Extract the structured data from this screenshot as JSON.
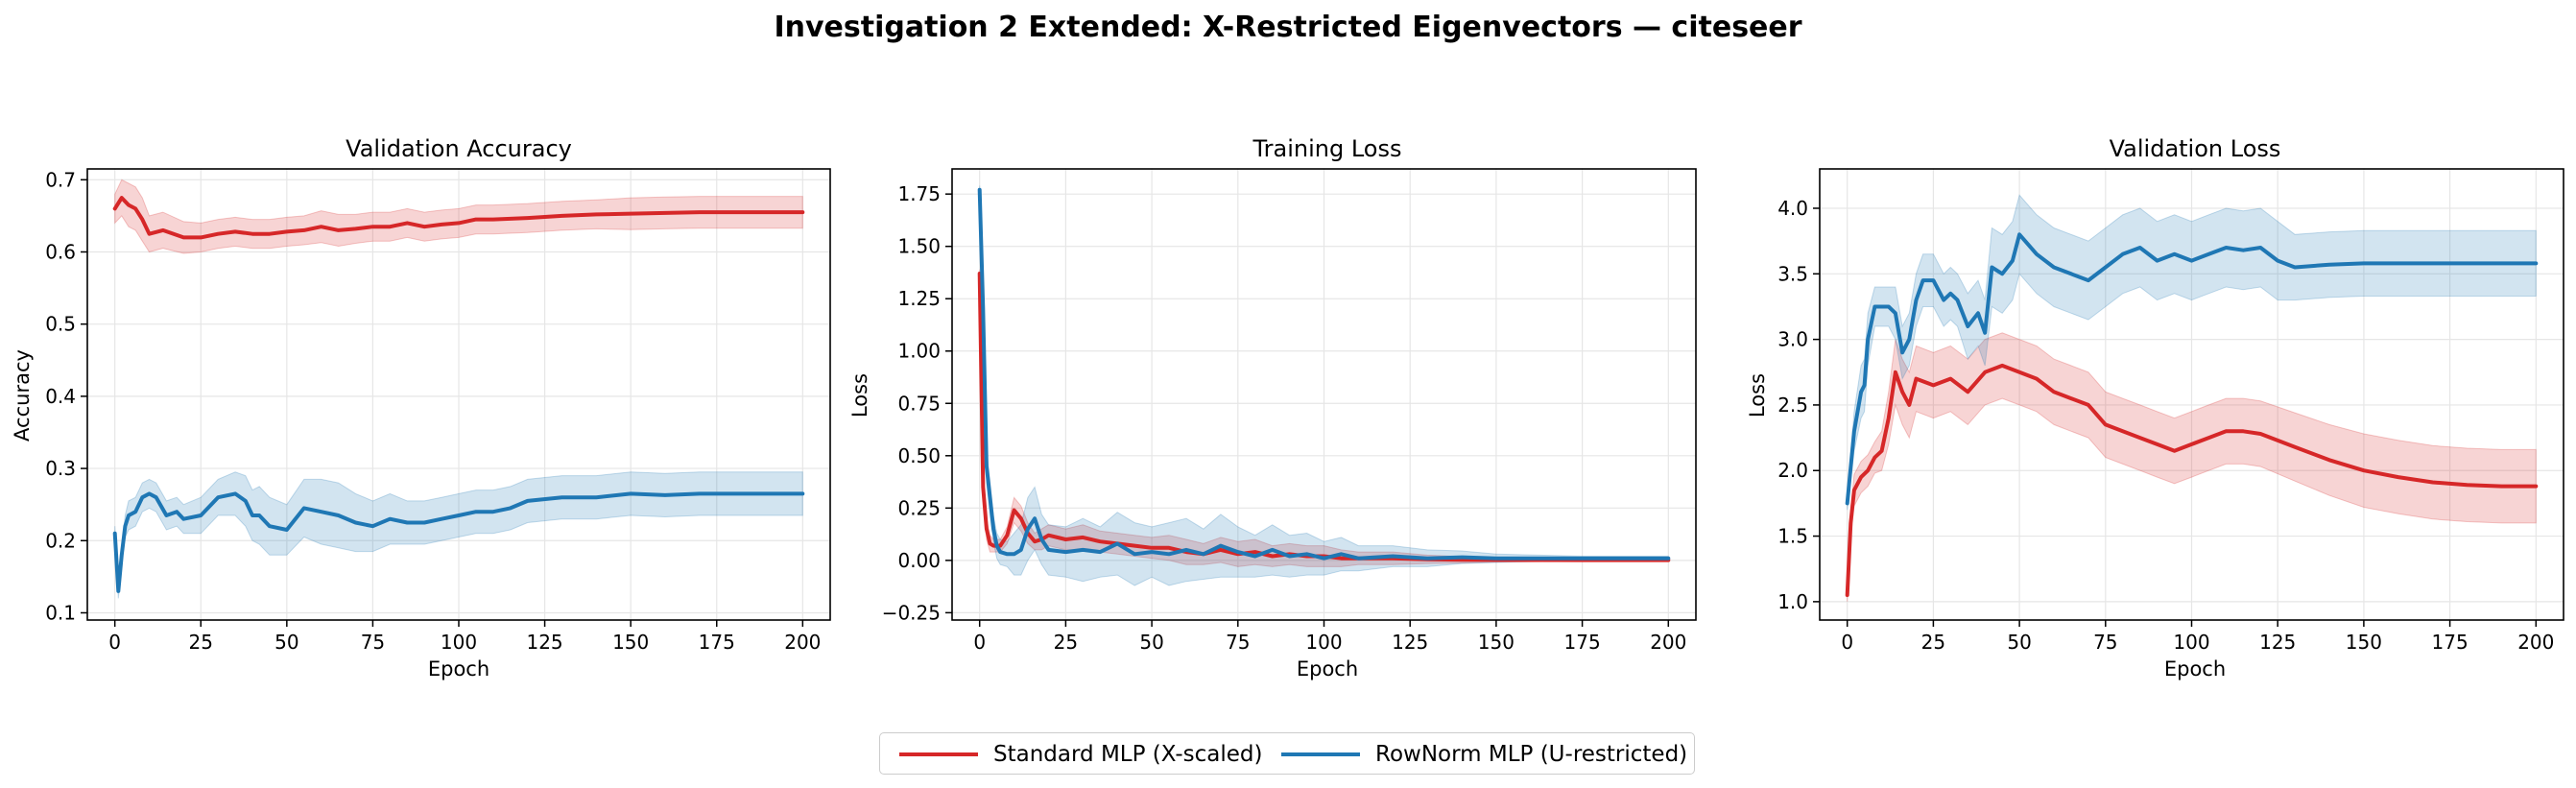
{
  "figure": {
    "title": "Investigation 2 Extended: X-Restricted Eigenvectors — citeseer",
    "colors": {
      "standard": "#d62728",
      "rownorm": "#1f77b4"
    },
    "legend": {
      "entries": [
        {
          "name": "Standard MLP (X-scaled)",
          "color": "#d62728"
        },
        {
          "name": "RowNorm MLP (U-restricted)",
          "color": "#1f77b4"
        }
      ],
      "placement": "bottom-center"
    }
  },
  "chart_data": [
    {
      "type": "line",
      "title": "Validation Accuracy",
      "xlabel": "Epoch",
      "ylabel": "Accuracy",
      "xlim": [
        -8,
        208
      ],
      "ylim": [
        0.09,
        0.715
      ],
      "xticks": [
        0,
        25,
        50,
        75,
        100,
        125,
        150,
        175,
        200
      ],
      "yticks": [
        0.1,
        0.2,
        0.3,
        0.4,
        0.5,
        0.6,
        0.7
      ],
      "ytick_labels": [
        "0.1",
        "0.2",
        "0.3",
        "0.4",
        "0.5",
        "0.6",
        "0.7"
      ],
      "grid": true,
      "series": [
        {
          "name": "Standard MLP (X-scaled)",
          "color": "#d62728",
          "x": [
            0,
            2,
            4,
            6,
            8,
            10,
            14,
            20,
            25,
            30,
            35,
            40,
            45,
            50,
            55,
            60,
            65,
            70,
            75,
            80,
            85,
            90,
            95,
            100,
            105,
            110,
            120,
            130,
            140,
            150,
            160,
            170,
            180,
            190,
            200
          ],
          "y": [
            0.66,
            0.675,
            0.665,
            0.66,
            0.645,
            0.625,
            0.63,
            0.62,
            0.62,
            0.625,
            0.628,
            0.625,
            0.625,
            0.628,
            0.63,
            0.635,
            0.63,
            0.632,
            0.635,
            0.635,
            0.64,
            0.635,
            0.638,
            0.64,
            0.645,
            0.645,
            0.647,
            0.65,
            0.652,
            0.653,
            0.654,
            0.655,
            0.655,
            0.655,
            0.655
          ],
          "band": [
            0.02,
            0.025,
            0.03,
            0.03,
            0.03,
            0.025,
            0.025,
            0.022,
            0.02,
            0.02,
            0.02,
            0.02,
            0.02,
            0.02,
            0.02,
            0.022,
            0.022,
            0.02,
            0.02,
            0.02,
            0.02,
            0.02,
            0.02,
            0.02,
            0.02,
            0.02,
            0.02,
            0.02,
            0.02,
            0.022,
            0.022,
            0.022,
            0.022,
            0.022,
            0.022
          ]
        },
        {
          "name": "RowNorm MLP (U-restricted)",
          "color": "#1f77b4",
          "x": [
            0,
            1,
            2,
            3,
            4,
            6,
            8,
            10,
            12,
            15,
            18,
            20,
            25,
            30,
            35,
            38,
            40,
            42,
            45,
            50,
            55,
            60,
            65,
            70,
            75,
            80,
            85,
            90,
            95,
            100,
            105,
            110,
            115,
            120,
            130,
            140,
            150,
            160,
            170,
            180,
            190,
            200
          ],
          "y": [
            0.21,
            0.13,
            0.18,
            0.22,
            0.235,
            0.24,
            0.26,
            0.265,
            0.26,
            0.235,
            0.24,
            0.23,
            0.235,
            0.26,
            0.265,
            0.255,
            0.235,
            0.235,
            0.22,
            0.215,
            0.245,
            0.24,
            0.235,
            0.225,
            0.22,
            0.23,
            0.225,
            0.225,
            0.23,
            0.235,
            0.24,
            0.24,
            0.245,
            0.255,
            0.26,
            0.26,
            0.265,
            0.263,
            0.265,
            0.265,
            0.265,
            0.265
          ],
          "band": [
            0.01,
            0.01,
            0.01,
            0.015,
            0.02,
            0.02,
            0.02,
            0.02,
            0.02,
            0.02,
            0.02,
            0.02,
            0.025,
            0.025,
            0.03,
            0.035,
            0.035,
            0.04,
            0.04,
            0.035,
            0.04,
            0.045,
            0.045,
            0.04,
            0.035,
            0.035,
            0.03,
            0.03,
            0.03,
            0.03,
            0.03,
            0.03,
            0.03,
            0.03,
            0.03,
            0.03,
            0.03,
            0.03,
            0.03,
            0.03,
            0.03,
            0.03
          ]
        }
      ]
    },
    {
      "type": "line",
      "title": "Training Loss",
      "xlabel": "Epoch",
      "ylabel": "Loss",
      "xlim": [
        -8,
        208
      ],
      "ylim": [
        -0.285,
        1.87
      ],
      "xticks": [
        0,
        25,
        50,
        75,
        100,
        125,
        150,
        175,
        200
      ],
      "yticks": [
        -0.25,
        0.0,
        0.25,
        0.5,
        0.75,
        1.0,
        1.25,
        1.5,
        1.75
      ],
      "ytick_labels": [
        "−0.25",
        "0.00",
        "0.25",
        "0.50",
        "0.75",
        "1.00",
        "1.25",
        "1.50",
        "1.75"
      ],
      "grid": true,
      "series": [
        {
          "name": "Standard MLP (X-scaled)",
          "color": "#d62728",
          "x": [
            0,
            1,
            2,
            3,
            4,
            6,
            8,
            10,
            12,
            14,
            16,
            18,
            20,
            25,
            30,
            35,
            40,
            45,
            50,
            55,
            60,
            65,
            70,
            75,
            80,
            85,
            90,
            95,
            100,
            105,
            110,
            120,
            130,
            140,
            150,
            175,
            200
          ],
          "y": [
            1.37,
            0.35,
            0.15,
            0.08,
            0.07,
            0.07,
            0.12,
            0.24,
            0.2,
            0.13,
            0.09,
            0.1,
            0.12,
            0.1,
            0.11,
            0.09,
            0.08,
            0.07,
            0.06,
            0.06,
            0.04,
            0.03,
            0.05,
            0.03,
            0.04,
            0.02,
            0.03,
            0.02,
            0.02,
            0.01,
            0.01,
            0.01,
            0.005,
            0.003,
            0.002,
            0.001,
            0.001
          ],
          "band": [
            0.02,
            0.06,
            0.05,
            0.04,
            0.03,
            0.03,
            0.04,
            0.06,
            0.06,
            0.05,
            0.04,
            0.05,
            0.05,
            0.05,
            0.06,
            0.05,
            0.05,
            0.05,
            0.05,
            0.06,
            0.06,
            0.05,
            0.06,
            0.06,
            0.06,
            0.05,
            0.05,
            0.05,
            0.05,
            0.04,
            0.03,
            0.03,
            0.02,
            0.015,
            0.01,
            0.005,
            0.005
          ]
        },
        {
          "name": "RowNorm MLP (U-restricted)",
          "color": "#1f77b4",
          "x": [
            0,
            1,
            2,
            3,
            4,
            5,
            6,
            8,
            10,
            12,
            14,
            16,
            18,
            20,
            25,
            30,
            35,
            40,
            45,
            50,
            55,
            60,
            65,
            70,
            75,
            80,
            85,
            90,
            95,
            100,
            105,
            110,
            120,
            130,
            140,
            150,
            175,
            200
          ],
          "y": [
            1.77,
            1.2,
            0.45,
            0.3,
            0.15,
            0.07,
            0.04,
            0.03,
            0.03,
            0.05,
            0.15,
            0.2,
            0.1,
            0.05,
            0.04,
            0.05,
            0.04,
            0.08,
            0.03,
            0.04,
            0.03,
            0.05,
            0.03,
            0.07,
            0.04,
            0.02,
            0.05,
            0.02,
            0.03,
            0.01,
            0.03,
            0.01,
            0.02,
            0.01,
            0.015,
            0.01,
            0.01,
            0.01
          ],
          "band": [
            0.02,
            0.05,
            0.08,
            0.08,
            0.06,
            0.06,
            0.06,
            0.06,
            0.1,
            0.12,
            0.15,
            0.15,
            0.12,
            0.12,
            0.12,
            0.15,
            0.12,
            0.15,
            0.15,
            0.12,
            0.15,
            0.15,
            0.12,
            0.15,
            0.12,
            0.1,
            0.12,
            0.1,
            0.1,
            0.08,
            0.08,
            0.06,
            0.05,
            0.04,
            0.03,
            0.02,
            0.01,
            0.01
          ]
        }
      ]
    },
    {
      "type": "line",
      "title": "Validation Loss",
      "xlabel": "Epoch",
      "ylabel": "Loss",
      "xlim": [
        -8,
        208
      ],
      "ylim": [
        0.86,
        4.3
      ],
      "xticks": [
        0,
        25,
        50,
        75,
        100,
        125,
        150,
        175,
        200
      ],
      "yticks": [
        1.0,
        1.5,
        2.0,
        2.5,
        3.0,
        3.5,
        4.0
      ],
      "ytick_labels": [
        "1.0",
        "1.5",
        "2.0",
        "2.5",
        "3.0",
        "3.5",
        "4.0"
      ],
      "grid": true,
      "series": [
        {
          "name": "Standard MLP (X-scaled)",
          "color": "#d62728",
          "x": [
            0,
            1,
            2,
            4,
            6,
            8,
            10,
            12,
            14,
            16,
            18,
            20,
            25,
            30,
            35,
            40,
            45,
            50,
            55,
            60,
            65,
            70,
            75,
            80,
            85,
            90,
            95,
            100,
            105,
            110,
            115,
            120,
            130,
            140,
            150,
            160,
            170,
            180,
            190,
            200
          ],
          "y": [
            1.05,
            1.6,
            1.85,
            1.95,
            2.0,
            2.1,
            2.15,
            2.4,
            2.75,
            2.6,
            2.5,
            2.7,
            2.65,
            2.7,
            2.6,
            2.75,
            2.8,
            2.75,
            2.7,
            2.6,
            2.55,
            2.5,
            2.35,
            2.3,
            2.25,
            2.2,
            2.15,
            2.2,
            2.25,
            2.3,
            2.3,
            2.28,
            2.18,
            2.08,
            2.0,
            1.95,
            1.91,
            1.89,
            1.88,
            1.88
          ],
          "band": [
            0.05,
            0.1,
            0.12,
            0.12,
            0.12,
            0.12,
            0.15,
            0.2,
            0.25,
            0.25,
            0.25,
            0.25,
            0.25,
            0.25,
            0.25,
            0.25,
            0.25,
            0.25,
            0.25,
            0.25,
            0.25,
            0.25,
            0.25,
            0.25,
            0.25,
            0.25,
            0.25,
            0.25,
            0.25,
            0.25,
            0.25,
            0.25,
            0.26,
            0.27,
            0.28,
            0.28,
            0.28,
            0.28,
            0.28,
            0.28
          ]
        },
        {
          "name": "RowNorm MLP (U-restricted)",
          "color": "#1f77b4",
          "x": [
            0,
            2,
            4,
            5,
            6,
            8,
            10,
            12,
            14,
            16,
            18,
            20,
            22,
            25,
            28,
            30,
            32,
            35,
            38,
            40,
            42,
            45,
            48,
            50,
            55,
            60,
            65,
            70,
            75,
            80,
            85,
            90,
            95,
            100,
            105,
            110,
            115,
            120,
            125,
            130,
            140,
            150,
            160,
            170,
            180,
            190,
            200
          ],
          "y": [
            1.75,
            2.3,
            2.6,
            2.65,
            3.0,
            3.25,
            3.25,
            3.25,
            3.2,
            2.9,
            3.0,
            3.3,
            3.45,
            3.45,
            3.3,
            3.35,
            3.3,
            3.1,
            3.2,
            3.05,
            3.55,
            3.5,
            3.6,
            3.8,
            3.65,
            3.55,
            3.5,
            3.45,
            3.55,
            3.65,
            3.7,
            3.6,
            3.65,
            3.6,
            3.65,
            3.7,
            3.68,
            3.7,
            3.6,
            3.55,
            3.57,
            3.58,
            3.58,
            3.58,
            3.58,
            3.58,
            3.58
          ],
          "band": [
            0.05,
            0.15,
            0.2,
            0.2,
            0.2,
            0.15,
            0.15,
            0.15,
            0.2,
            0.2,
            0.2,
            0.2,
            0.2,
            0.2,
            0.2,
            0.2,
            0.2,
            0.25,
            0.25,
            0.25,
            0.3,
            0.3,
            0.3,
            0.3,
            0.3,
            0.3,
            0.3,
            0.3,
            0.3,
            0.3,
            0.3,
            0.3,
            0.3,
            0.3,
            0.3,
            0.3,
            0.3,
            0.3,
            0.3,
            0.25,
            0.25,
            0.25,
            0.25,
            0.25,
            0.25,
            0.25,
            0.25
          ]
        }
      ]
    }
  ]
}
